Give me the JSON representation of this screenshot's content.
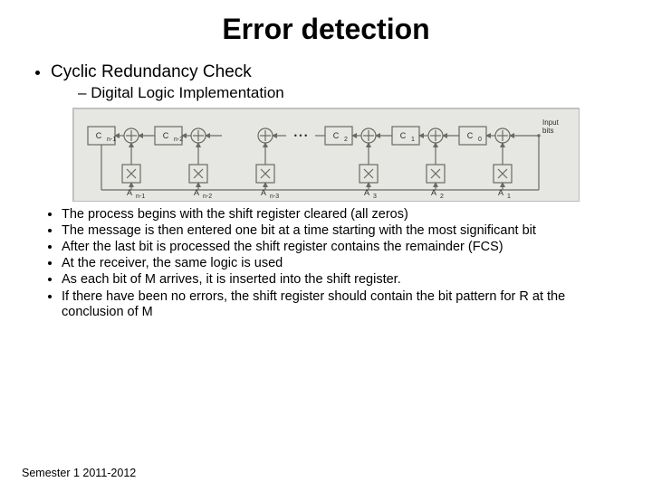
{
  "title": "Error detection",
  "bullet1": "Cyclic Redundancy Check",
  "bullet1_sub": "Digital Logic Implementation",
  "process": {
    "p1": "The process begins with the shift register cleared (all zeros)",
    "p2": "The message is then entered one bit at a time starting with the most significant bit",
    "p3": "After the last bit is processed the shift register contains the remainder (FCS)",
    "p4": "At the receiver, the same logic is used",
    "p5": "As each bit of M arrives, it is inserted into the shift register.",
    "p6": "If there have been no errors, the shift register should contain the bit pattern for R at the conclusion of M"
  },
  "footer": "Semester 1 2011-2012",
  "diagram": {
    "type": "block-diagram",
    "background_color": "#e6e6e3",
    "unit_border_color": "#6a6a64",
    "unit_fill_color": "#e6e6e3",
    "stroke_width": 1.2,
    "text_color": "#2a2a28",
    "font_size_small": 9,
    "font_size_tiny": 7,
    "input_label": "Input\\nbits",
    "ellipsis": "• • •",
    "stages": [
      {
        "c_label": "C",
        "c_sub": "n-1",
        "a_label": "A",
        "a_sub": "n-1"
      },
      {
        "c_label": "C",
        "c_sub": "n-2",
        "a_label": "A",
        "a_sub": "n-2"
      },
      {
        "c_label": "",
        "c_sub": "",
        "a_label": "A",
        "a_sub": "n-3"
      },
      {
        "c_label": "C",
        "c_sub": "2",
        "a_label": "A",
        "a_sub": "3"
      },
      {
        "c_label": "C",
        "c_sub": "1",
        "a_label": "A",
        "a_sub": "2"
      },
      {
        "c_label": "C",
        "c_sub": "0",
        "a_label": "A",
        "a_sub": "1"
      }
    ]
  }
}
